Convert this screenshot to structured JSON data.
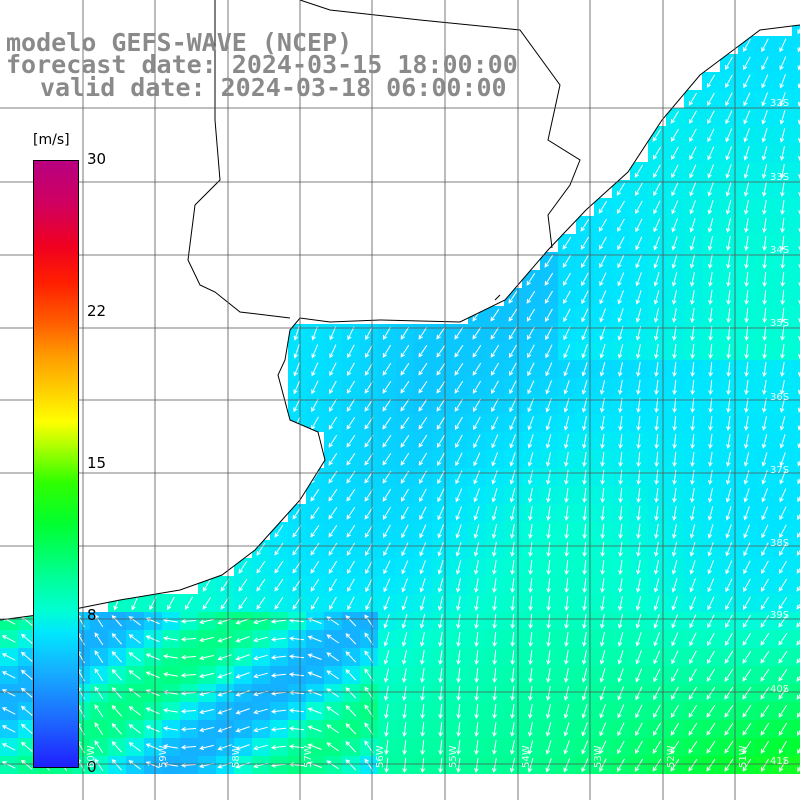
{
  "title": {
    "line1": "modelo GEFS-WAVE (NCEP)",
    "line2": "forecast date: 2024-03-15 18:00:00",
    "line3": "valid date: 2024-03-18 06:00:00"
  },
  "colorbar": {
    "unit": "[m/s]",
    "ticks": [
      "30",
      "22",
      "15",
      "8",
      "0"
    ],
    "min": 0,
    "max": 30
  },
  "grid": {
    "lat_labels": [
      "32S",
      "33S",
      "34S",
      "35S",
      "36S",
      "37S",
      "38S",
      "39S",
      "40S",
      "41S"
    ],
    "lon_labels": [
      "60W",
      "59W",
      "58W",
      "57W",
      "56W",
      "55W",
      "54W",
      "53W",
      "52W",
      "51W"
    ]
  },
  "colors": {
    "land": "#ffffff",
    "coast": "#000000",
    "grid": "#555555",
    "arrows": "#ffffff",
    "title": "#8a8a8a"
  },
  "chart_data": {
    "type": "heatmap",
    "variable": "wind speed",
    "unit": "m/s",
    "description_values": {
      "north_coastal_band": 6,
      "central_plume": 8,
      "southern_band": 11,
      "southeast_max": 14
    }
  }
}
